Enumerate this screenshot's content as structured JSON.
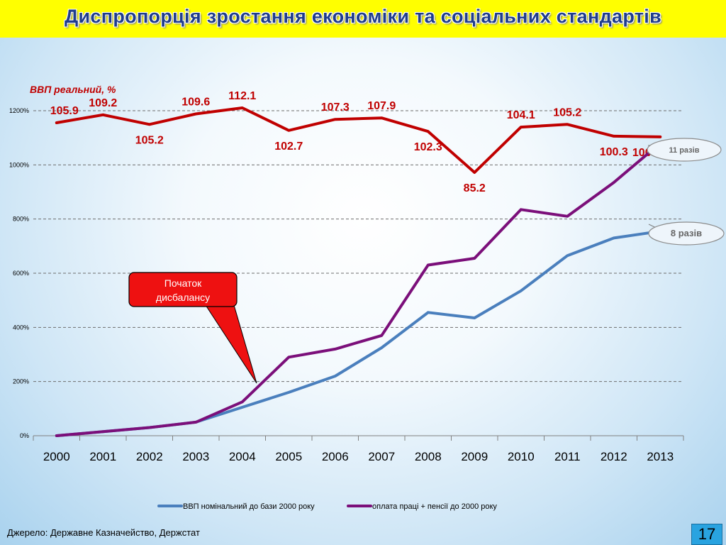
{
  "slide": {
    "title": "Диспропорція зростання економіки та соціальних стандартів",
    "source": "Джерело: Державне Казначейство, Держстат",
    "page_number": "17"
  },
  "colors": {
    "gdp_real": "#c00000",
    "gdp_nominal": "#4a7fbd",
    "wages_pensions": "#7b0f7a",
    "callout_fill": "#ee1111",
    "title_bg": "#ffff00",
    "title_text": "#1f3c8c"
  },
  "chart_data": {
    "type": "line",
    "categories": [
      "2000",
      "2001",
      "2002",
      "2003",
      "2004",
      "2005",
      "2006",
      "2007",
      "2008",
      "2009",
      "2010",
      "2011",
      "2012",
      "2013"
    ],
    "y_ticks": [
      "0%",
      "200%",
      "400%",
      "600%",
      "800%",
      "1000%",
      "1200%"
    ],
    "ylim": [
      0,
      1200
    ],
    "grid": true,
    "legend_position": "bottom",
    "series": [
      {
        "name": "ВВП номінальний до бази 2000 року",
        "key": "gdp_nominal",
        "values": [
          0,
          15,
          30,
          50,
          105,
          160,
          220,
          325,
          455,
          435,
          535,
          665,
          730,
          755
        ]
      },
      {
        "name": "оплата праці + пенсії до 2000 року",
        "key": "wages_pensions",
        "values": [
          0,
          15,
          30,
          50,
          125,
          290,
          320,
          370,
          630,
          655,
          835,
          810,
          935,
          1080
        ]
      }
    ],
    "gdp_real": {
      "label": "ВВП реальний, %",
      "values": [
        105.9,
        109.2,
        105.2,
        109.6,
        112.1,
        102.7,
        107.3,
        107.9,
        102.3,
        85.2,
        104.1,
        105.2,
        100.3,
        100
      ],
      "labels": [
        "105.9",
        "109.2",
        "105.2",
        "109.6",
        "112.1",
        "102.7",
        "107.3",
        "107.9",
        "102.3",
        "85.2",
        "104.1",
        "105.2",
        "100.3",
        "100"
      ]
    },
    "annotations": [
      {
        "text": "11 разів",
        "series": "wages_pensions"
      },
      {
        "text": "8 разів",
        "series": "gdp_nominal"
      }
    ],
    "callout": {
      "line1": "Початок",
      "line2": "дисбалансу"
    }
  }
}
